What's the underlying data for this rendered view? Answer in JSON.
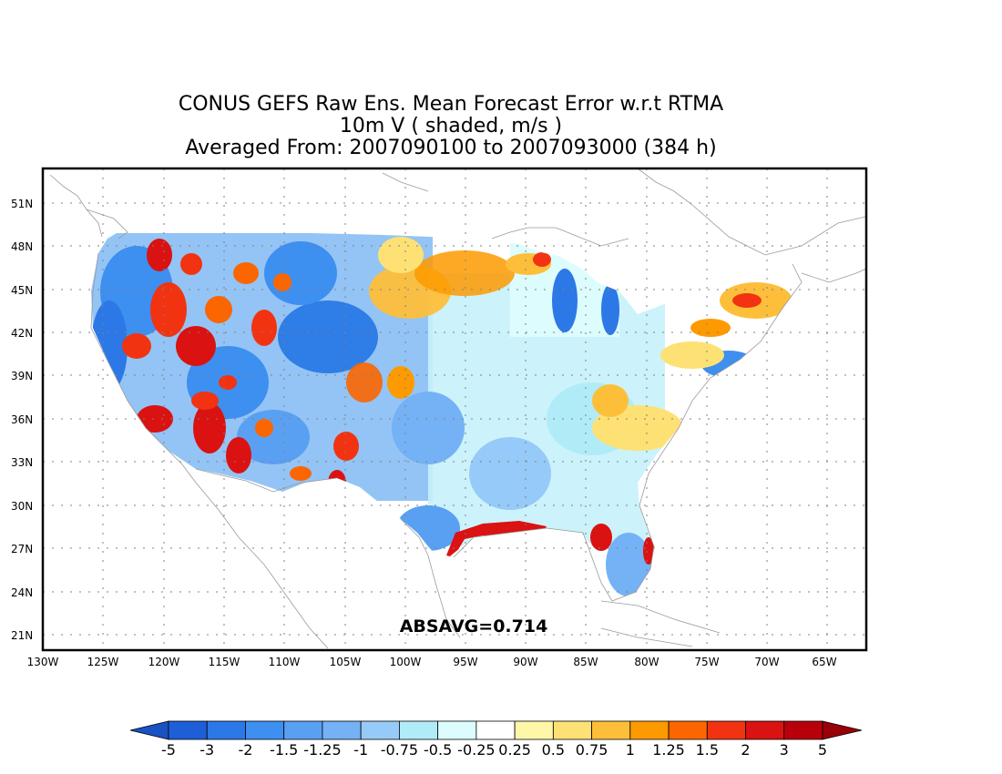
{
  "title": {
    "line1": "CONUS GEFS Raw Ens. Mean Forecast Error w.r.t RTMA",
    "line2": "10m V ( shaded, m/s )",
    "line3": "Averaged From: 2007090100 to 2007093000 (384 h)"
  },
  "annotation": "ABSAVG=0.714",
  "lat_labels": [
    "51N",
    "48N",
    "45N",
    "42N",
    "39N",
    "36N",
    "33N",
    "30N",
    "27N",
    "24N",
    "21N"
  ],
  "lon_labels": [
    "130W",
    "125W",
    "120W",
    "115W",
    "110W",
    "105W",
    "100W",
    "95W",
    "90W",
    "85W",
    "80W",
    "75W",
    "70W",
    "65W"
  ],
  "grid": true,
  "colorbar": {
    "colors": [
      "#1e5fd8",
      "#2c78e6",
      "#3d8ff0",
      "#5aa0f2",
      "#74b2f5",
      "#96caf8",
      "#b0ecf8",
      "#dcfcfe",
      "#ffffff",
      "#fff7a8",
      "#fde174",
      "#fdbf3a",
      "#fd9a00",
      "#fb6600",
      "#f23311",
      "#da1211",
      "#b8000a"
    ],
    "low_extend_color": "#1a52c4",
    "high_extend_color": "#9a0008",
    "labels": [
      "-5",
      "-3",
      "-2",
      "-1.5",
      "-1.25",
      "-1",
      "-0.75",
      "-0.5",
      "-0.25",
      "0.25",
      "0.5",
      "0.75",
      "1",
      "1.25",
      "1.5",
      "2",
      "3",
      "5"
    ]
  }
}
